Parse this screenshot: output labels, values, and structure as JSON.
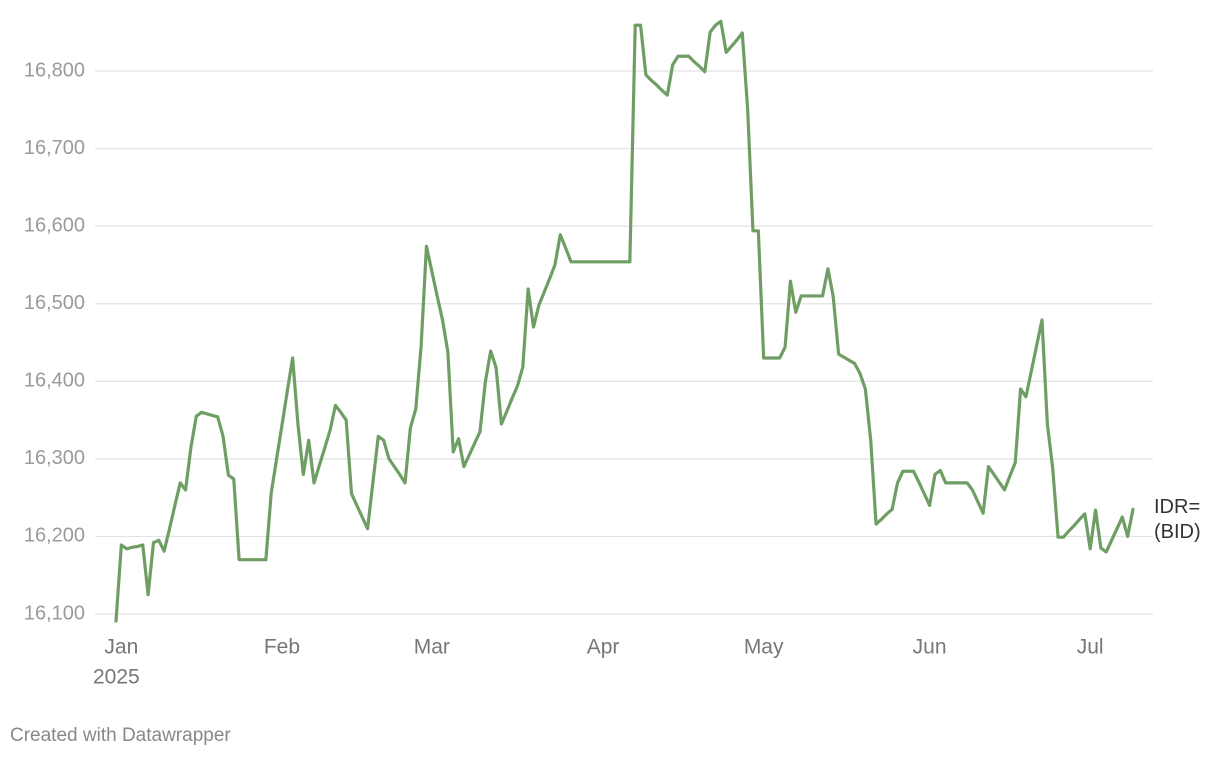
{
  "chart_data": {
    "type": "line",
    "categories": [
      null,
      "Jan",
      null,
      null,
      null,
      null,
      null,
      null,
      null,
      null,
      null,
      null,
      null,
      null,
      null,
      null,
      null,
      null,
      null,
      null,
      null,
      null,
      null,
      null,
      null,
      null,
      null,
      null,
      null,
      null,
      null,
      "Feb",
      null,
      null,
      null,
      null,
      null,
      null,
      null,
      null,
      null,
      null,
      null,
      null,
      null,
      null,
      null,
      null,
      null,
      null,
      null,
      null,
      null,
      null,
      null,
      null,
      null,
      null,
      null,
      "Mar",
      null,
      null,
      null,
      null,
      null,
      null,
      null,
      null,
      null,
      null,
      null,
      null,
      null,
      null,
      null,
      null,
      null,
      null,
      null,
      null,
      null,
      null,
      null,
      null,
      null,
      null,
      null,
      null,
      null,
      null,
      null,
      "Apr",
      null,
      null,
      null,
      null,
      null,
      null,
      null,
      null,
      null,
      null,
      null,
      null,
      null,
      null,
      null,
      null,
      null,
      null,
      null,
      null,
      null,
      null,
      null,
      null,
      null,
      null,
      null,
      null,
      null,
      "May",
      null,
      null,
      null,
      null,
      null,
      null,
      null,
      null,
      null,
      null,
      null,
      null,
      null,
      null,
      null,
      null,
      null,
      null,
      null,
      null,
      null,
      null,
      null,
      null,
      null,
      null,
      null,
      null,
      null,
      null,
      "Jun",
      null,
      null,
      null,
      null,
      null,
      null,
      null,
      null,
      null,
      null,
      null,
      null,
      null,
      null,
      null,
      null,
      null,
      null,
      null,
      null,
      null,
      null,
      null,
      null,
      null,
      null,
      null,
      null,
      null,
      "Jul",
      null,
      null,
      null,
      null,
      null,
      null,
      null,
      null
    ],
    "year": "2025",
    "series": [
      {
        "name": "IDR= (BID)",
        "color": "#6f9e64",
        "values": [
          16091,
          16189,
          16184,
          16186,
          16187,
          16189,
          16125,
          16192,
          16195,
          16181,
          16210,
          16240,
          16269,
          16260,
          16315,
          16355,
          16360,
          16358,
          16356,
          16354,
          16329,
          16279,
          16274,
          16170,
          16170,
          16170,
          16170,
          16170,
          16170,
          16256,
          16300,
          16343,
          16387,
          16430,
          16344,
          16280,
          16324,
          16269,
          16292,
          16314,
          16337,
          16369,
          16360,
          16350,
          16255,
          16240,
          16225,
          16210,
          16270,
          16329,
          16324,
          16300,
          16290,
          16280,
          16269,
          16340,
          16364,
          16445,
          16574,
          16542,
          16510,
          16479,
          16438,
          16309,
          16326,
          16290,
          16305,
          16320,
          16335,
          16399,
          16439,
          16418,
          16345,
          16361,
          16378,
          16394,
          16418,
          16519,
          16470,
          16498,
          16515,
          16532,
          16550,
          16589,
          16572,
          16554,
          16554,
          16554,
          16554,
          16554,
          16554,
          16554,
          16554,
          16554,
          16554,
          16554,
          16554,
          16859,
          16859,
          16795,
          16788,
          16782,
          16775,
          16769,
          16808,
          16819,
          16819,
          16819,
          16812,
          16806,
          16799,
          16850,
          16859,
          16864,
          16824,
          16832,
          16840,
          16849,
          16752,
          16594,
          16594,
          16430,
          16430,
          16430,
          16430,
          16444,
          16529,
          16489,
          16510,
          16510,
          16510,
          16510,
          16510,
          16545,
          16509,
          16435,
          16431,
          16427,
          16423,
          16410,
          16390,
          16324,
          16216,
          16222,
          16229,
          16235,
          16269,
          16284,
          16284,
          16284,
          16270,
          16255,
          16240,
          16280,
          16285,
          16269,
          16269,
          16269,
          16269,
          16269,
          16260,
          16245,
          16230,
          16290,
          16280,
          16270,
          16260,
          16278,
          16295,
          16390,
          16380,
          16413,
          16446,
          16479,
          16345,
          16288,
          16199,
          16199,
          16207,
          16214,
          16222,
          16229,
          16184,
          16234,
          16185,
          16180,
          16195,
          16210,
          16225,
          16200,
          16235
        ]
      }
    ],
    "ylim": [
      16100,
      16800
    ],
    "yticks": [
      {
        "value": 16100,
        "label": "16,100"
      },
      {
        "value": 16200,
        "label": "16,200"
      },
      {
        "value": 16300,
        "label": "16,300"
      },
      {
        "value": 16400,
        "label": "16,400"
      },
      {
        "value": 16500,
        "label": "16,500"
      },
      {
        "value": 16600,
        "label": "16,600"
      },
      {
        "value": 16700,
        "label": "16,700"
      },
      {
        "value": 16800,
        "label": "16,800"
      }
    ],
    "grid": true,
    "credit": "Created with Datawrapper"
  }
}
